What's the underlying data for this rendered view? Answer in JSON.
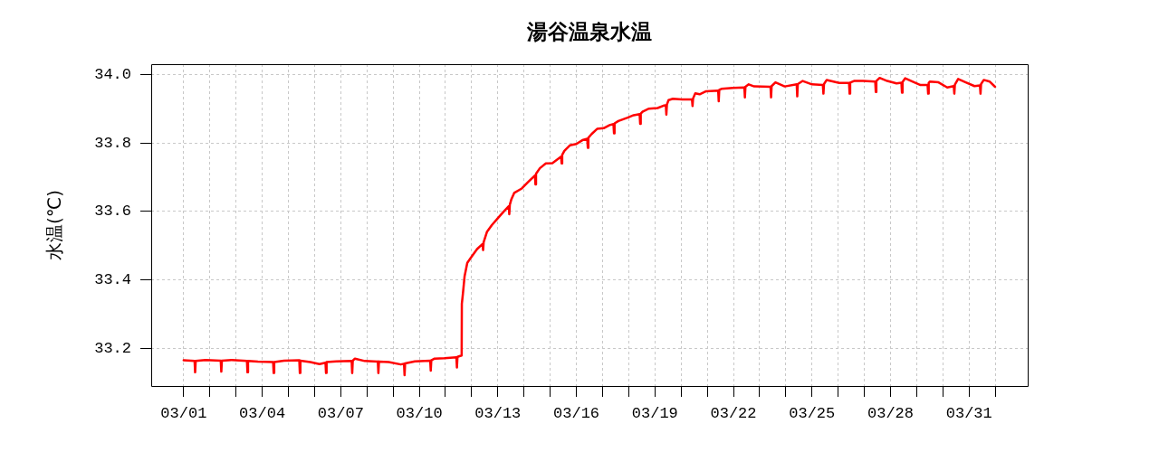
{
  "chart_data": {
    "type": "line",
    "title": "湯谷温泉水温",
    "ylabel": "水温(℃)",
    "color": "#ff0000",
    "grid": true,
    "xlim": [
      "--02-27T18:14",
      "--04-02T05:46"
    ],
    "xticks": [
      {
        "value": "--03-01",
        "label": "03/01"
      },
      {
        "value": "--03-02",
        "label": null
      },
      {
        "value": "--03-03",
        "label": null
      },
      {
        "value": "--03-04",
        "label": "03/04"
      },
      {
        "value": "--03-05",
        "label": null
      },
      {
        "value": "--03-06",
        "label": null
      },
      {
        "value": "--03-07",
        "label": "03/07"
      },
      {
        "value": "--03-08",
        "label": null
      },
      {
        "value": "--03-09",
        "label": null
      },
      {
        "value": "--03-10",
        "label": "03/10"
      },
      {
        "value": "--03-11",
        "label": null
      },
      {
        "value": "--03-12",
        "label": null
      },
      {
        "value": "--03-13",
        "label": "03/13"
      },
      {
        "value": "--03-14",
        "label": null
      },
      {
        "value": "--03-15",
        "label": null
      },
      {
        "value": "--03-16",
        "label": "03/16"
      },
      {
        "value": "--03-17",
        "label": null
      },
      {
        "value": "--03-18",
        "label": null
      },
      {
        "value": "--03-19",
        "label": "03/19"
      },
      {
        "value": "--03-20",
        "label": null
      },
      {
        "value": "--03-21",
        "label": null
      },
      {
        "value": "--03-22",
        "label": "03/22"
      },
      {
        "value": "--03-23",
        "label": null
      },
      {
        "value": "--03-24",
        "label": null
      },
      {
        "value": "--03-25",
        "label": "03/25"
      },
      {
        "value": "--03-26",
        "label": null
      },
      {
        "value": "--03-27",
        "label": null
      },
      {
        "value": "--03-28",
        "label": "03/28"
      },
      {
        "value": "--03-29",
        "label": null
      },
      {
        "value": "--03-30",
        "label": null
      },
      {
        "value": "--03-31",
        "label": "03/31"
      },
      {
        "value": "--04-01",
        "label": null
      }
    ],
    "ylim": [
      33.09,
      34.03
    ],
    "yticks": [
      33.2,
      33.4,
      33.6,
      33.8,
      {
        "value": 34,
        "label": "34.0"
      }
    ],
    "x": [
      "--03-01T00:00",
      "--03-01T10:00",
      "--03-01T10:30",
      "--03-01T11:00",
      "--03-01T20:00",
      "--03-02T10:00",
      "--03-02T10:30",
      "--03-02T11:00",
      "--03-02T20:00",
      "--03-03T10:00",
      "--03-03T10:30",
      "--03-03T11:00",
      "--03-03T20:00",
      "--03-04T10:00",
      "--03-04T10:30",
      "--03-04T11:00",
      "--03-04T20:00",
      "--03-05T10:00",
      "--03-05T10:30",
      "--03-05T11:00",
      "--03-05T20:00",
      "--03-06T04:30",
      "--03-06T10:00",
      "--03-06T10:30",
      "--03-06T11:00",
      "--03-06T20:00",
      "--03-07T10:00",
      "--03-07T10:30",
      "--03-07T11:00",
      "--03-07T13:00",
      "--03-07T22:00",
      "--03-08T10:00",
      "--03-08T10:30",
      "--03-08T11:00",
      "--03-08T20:00",
      "--03-09T07:00",
      "--03-09T10:00",
      "--03-09T10:30",
      "--03-09T11:00",
      "--03-09T20:00",
      "--03-10T10:00",
      "--03-10T10:30",
      "--03-10T11:00",
      "--03-10T14:00",
      "--03-10T23:00",
      "--03-11T10:00",
      "--03-11T10:30",
      "--03-11T11:00",
      "--03-11T14:50",
      "--03-11T15:00",
      "--03-11T16:00",
      "--03-11T17:30",
      "--03-11T20:00",
      "--03-12T00:30",
      "--03-12T05:00",
      "--03-12T10:00",
      "--03-12T10:30",
      "--03-12T11:00",
      "--03-12T14:00",
      "--03-12T18:30",
      "--03-13T00:00",
      "--03-13T05:30",
      "--03-13T10:00",
      "--03-13T10:30",
      "--03-13T11:00",
      "--03-13T12:30",
      "--03-13T15:00",
      "--03-13T22:00",
      "--03-14T03:30",
      "--03-14T10:00",
      "--03-14T10:30",
      "--03-14T11:00",
      "--03-14T14:30",
      "--03-14T20:00",
      "--03-15T02:00",
      "--03-15T10:00",
      "--03-15T10:30",
      "--03-15T11:00",
      "--03-15T13:00",
      "--03-15T18:00",
      "--03-16T00:00",
      "--03-16T05:30",
      "--03-16T10:00",
      "--03-16T10:30",
      "--03-16T11:00",
      "--03-16T14:00",
      "--03-16T19:00",
      "--03-17T01:00",
      "--03-17T06:30",
      "--03-17T10:00",
      "--03-17T10:30",
      "--03-17T11:00",
      "--03-17T14:30",
      "--03-17T23:00",
      "--03-18T04:30",
      "--03-18T10:00",
      "--03-18T10:30",
      "--03-18T11:00",
      "--03-18T13:00",
      "--03-18T18:30",
      "--03-19T02:30",
      "--03-19T08:00",
      "--03-19T10:00",
      "--03-19T10:30",
      "--03-19T11:00",
      "--03-19T12:30",
      "--03-19T16:30",
      "--03-20T01:00",
      "--03-20T10:00",
      "--03-20T10:30",
      "--03-20T11:00",
      "--03-20T13:00",
      "--03-20T17:00",
      "--03-20T23:00",
      "--03-21T10:00",
      "--03-21T10:30",
      "--03-21T11:00",
      "--03-21T13:00",
      "--03-21T23:30",
      "--03-22T10:00",
      "--03-22T10:30",
      "--03-22T11:00",
      "--03-22T14:00",
      "--03-22T19:00",
      "--03-23T10:00",
      "--03-23T10:30",
      "--03-23T11:00",
      "--03-23T14:30",
      "--03-23T23:00",
      "--03-24T10:00",
      "--03-24T10:30",
      "--03-24T11:00",
      "--03-24T15:30",
      "--03-25T00:00",
      "--03-25T10:00",
      "--03-25T10:30",
      "--03-25T11:00",
      "--03-25T13:30",
      "--03-26T01:00",
      "--03-26T10:00",
      "--03-26T10:30",
      "--03-26T11:00",
      "--03-26T14:30",
      "--03-26T23:00",
      "--03-27T10:00",
      "--03-27T10:30",
      "--03-27T11:00",
      "--03-27T14:00",
      "--03-27T21:00",
      "--03-28T05:30",
      "--03-28T10:00",
      "--03-28T10:30",
      "--03-28T11:00",
      "--03-28T13:30",
      "--03-28T19:00",
      "--03-29T03:30",
      "--03-29T10:00",
      "--03-29T10:30",
      "--03-29T11:00",
      "--03-29T12:00",
      "--03-29T20:00",
      "--03-30T04:00",
      "--03-30T10:00",
      "--03-30T10:30",
      "--03-30T11:00",
      "--03-30T14:00",
      "--03-30T21:00",
      "--03-31T05:00",
      "--03-31T10:00",
      "--03-31T10:30",
      "--03-31T11:00",
      "--03-31T13:30",
      "--03-31T19:00",
      "--03-31T23:50"
    ],
    "values": [
      33.165,
      33.163,
      33.13,
      33.163,
      33.166,
      33.164,
      33.132,
      33.164,
      33.166,
      33.163,
      33.13,
      33.163,
      33.161,
      33.16,
      33.128,
      33.16,
      33.164,
      33.165,
      33.128,
      33.164,
      33.16,
      33.154,
      33.158,
      33.128,
      33.16,
      33.162,
      33.163,
      33.128,
      33.164,
      33.17,
      33.163,
      33.161,
      33.128,
      33.161,
      33.16,
      33.153,
      33.155,
      33.122,
      33.156,
      33.162,
      33.164,
      33.135,
      33.165,
      33.17,
      33.171,
      33.174,
      33.144,
      33.175,
      33.179,
      33.33,
      33.36,
      33.41,
      33.45,
      33.47,
      33.49,
      33.505,
      33.487,
      33.51,
      33.54,
      33.56,
      33.58,
      33.6,
      33.615,
      33.592,
      33.62,
      33.636,
      33.654,
      33.667,
      33.685,
      33.705,
      33.679,
      33.71,
      33.726,
      33.74,
      33.741,
      33.76,
      33.74,
      33.765,
      33.777,
      33.793,
      33.797,
      33.808,
      33.812,
      33.786,
      33.815,
      33.826,
      33.841,
      33.843,
      33.852,
      33.855,
      33.828,
      33.857,
      33.864,
      33.874,
      33.881,
      33.884,
      33.856,
      33.886,
      33.892,
      33.9,
      33.902,
      33.909,
      33.91,
      33.883,
      33.912,
      33.925,
      33.929,
      33.927,
      33.927,
      33.908,
      33.93,
      33.945,
      33.942,
      33.951,
      33.953,
      33.922,
      33.955,
      33.958,
      33.961,
      33.962,
      33.933,
      33.964,
      33.971,
      33.965,
      33.964,
      33.933,
      33.966,
      33.977,
      33.965,
      33.971,
      33.936,
      33.972,
      33.981,
      33.971,
      33.969,
      33.944,
      33.972,
      33.984,
      33.975,
      33.975,
      33.944,
      33.976,
      33.981,
      33.981,
      33.979,
      33.949,
      33.981,
      33.99,
      33.981,
      33.974,
      33.976,
      33.947,
      33.978,
      33.989,
      33.981,
      33.969,
      33.969,
      33.944,
      33.975,
      33.979,
      33.977,
      33.962,
      33.966,
      33.944,
      33.97,
      33.987,
      33.977,
      33.966,
      33.968,
      33.944,
      33.972,
      33.984,
      33.979,
      33.964
    ]
  }
}
